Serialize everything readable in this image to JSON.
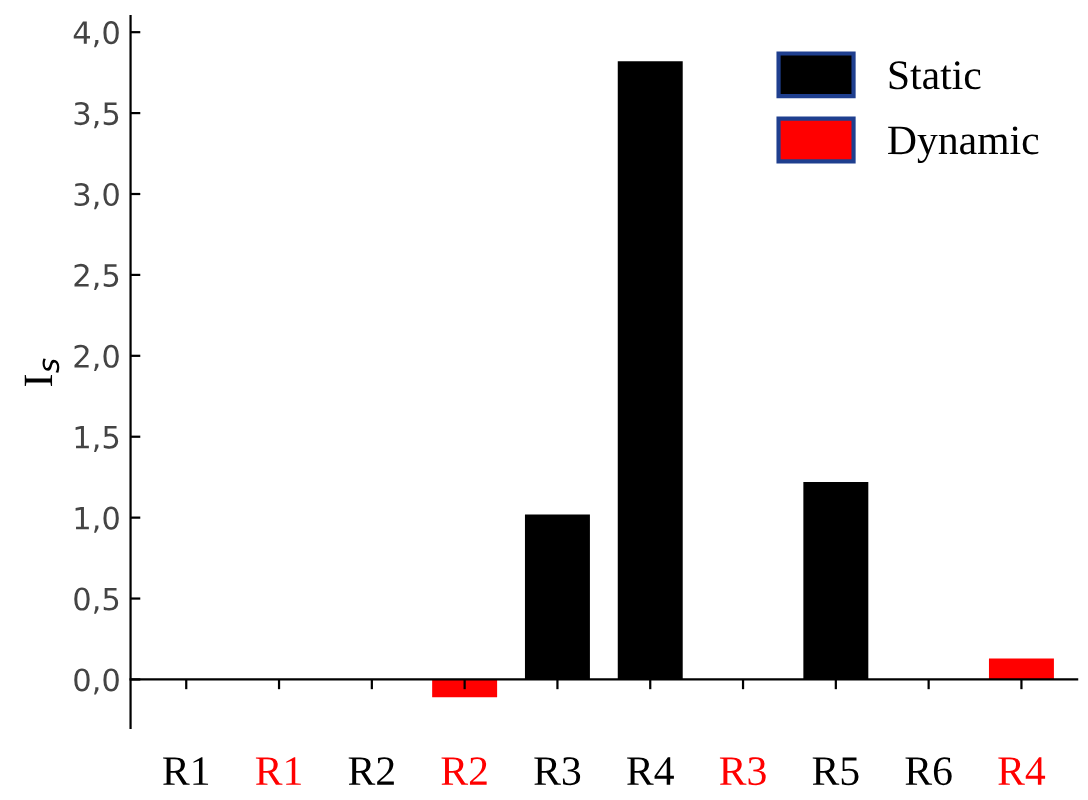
{
  "chart_data": {
    "type": "bar",
    "ylabel": "I$_{s}$",
    "categories": [
      "R1",
      "R1",
      "R2",
      "R2",
      "R3",
      "R4",
      "R3",
      "R5",
      "R6",
      "R4"
    ],
    "series": [
      {
        "name": "Static",
        "color": "#000000",
        "values": [
          0,
          null,
          0,
          null,
          1.02,
          3.82,
          null,
          1.22,
          0,
          null
        ]
      },
      {
        "name": "Dynamic",
        "color": "#ff0000",
        "values": [
          null,
          0,
          null,
          -0.11,
          null,
          null,
          0,
          null,
          null,
          0.13
        ]
      }
    ],
    "ylim": [
      -0.3,
      4.1
    ],
    "yticks": [
      {
        "value": 0,
        "label": "0,0"
      },
      {
        "value": 0.5,
        "label": "0,5"
      },
      {
        "value": 1,
        "label": "1,0"
      },
      {
        "value": 1.5,
        "label": "1,5"
      },
      {
        "value": 2,
        "label": "2,0"
      },
      {
        "value": 2.5,
        "label": "2,5"
      },
      {
        "value": 3,
        "label": "3,0"
      },
      {
        "value": 3.5,
        "label": "3,5"
      },
      {
        "value": 4,
        "label": "4,0"
      }
    ],
    "legend": "top right"
  }
}
